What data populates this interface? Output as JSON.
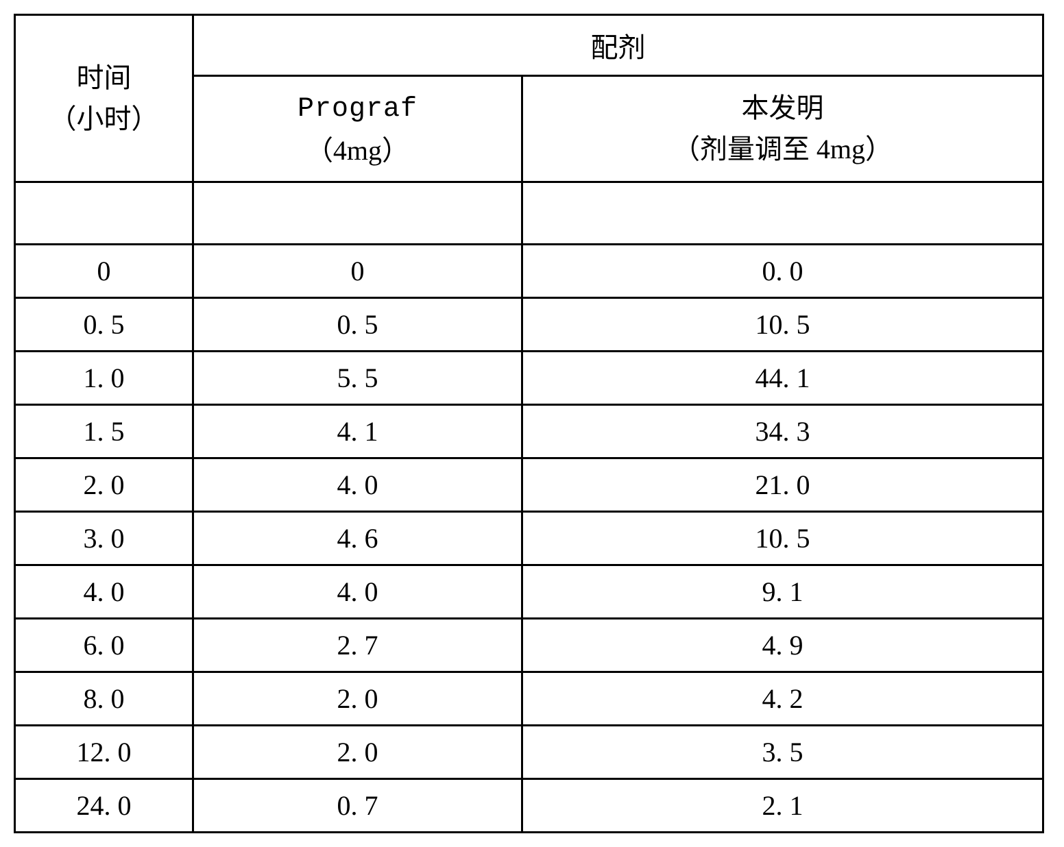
{
  "table": {
    "border_color": "#000000",
    "background_color": "#ffffff",
    "text_color": "#000000",
    "font_size_pt": 30,
    "header": {
      "time_label_line1": "时间",
      "time_label_line2": "（小时）",
      "formulation_group": "配剂",
      "col_prograf_line1": "Prograf",
      "col_prograf_line2": "（4mg）",
      "col_invent_line1": "本发明",
      "col_invent_line2": "（剂量调至 4mg）"
    },
    "columns": [
      "time_hr",
      "prograf_4mg",
      "invention_4mg"
    ],
    "rows": [
      {
        "time": "0",
        "prograf": "0",
        "invention": "0. 0"
      },
      {
        "time": "0. 5",
        "prograf": "0. 5",
        "invention": "10. 5"
      },
      {
        "time": "1. 0",
        "prograf": "5. 5",
        "invention": "44. 1"
      },
      {
        "time": "1. 5",
        "prograf": "4. 1",
        "invention": "34. 3"
      },
      {
        "time": "2. 0",
        "prograf": "4. 0",
        "invention": "21. 0"
      },
      {
        "time": "3. 0",
        "prograf": "4. 6",
        "invention": "10. 5"
      },
      {
        "time": "4. 0",
        "prograf": "4. 0",
        "invention": "9. 1"
      },
      {
        "time": "6. 0",
        "prograf": "2. 7",
        "invention": "4. 9"
      },
      {
        "time": "8. 0",
        "prograf": "2. 0",
        "invention": "4. 2"
      },
      {
        "time": "12. 0",
        "prograf": "2. 0",
        "invention": "3. 5"
      },
      {
        "time": "24. 0",
        "prograf": "0. 7",
        "invention": "2. 1"
      }
    ]
  }
}
